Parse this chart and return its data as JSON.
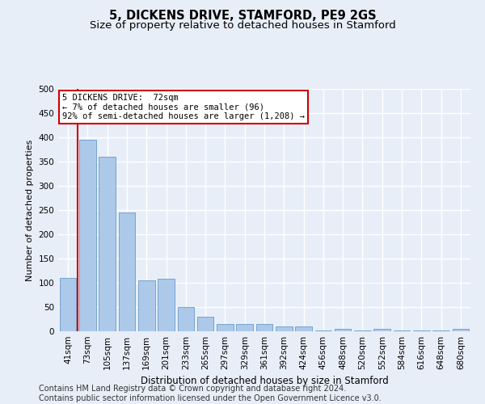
{
  "title": "5, DICKENS DRIVE, STAMFORD, PE9 2GS",
  "subtitle": "Size of property relative to detached houses in Stamford",
  "xlabel": "Distribution of detached houses by size in Stamford",
  "ylabel": "Number of detached properties",
  "categories": [
    "41sqm",
    "73sqm",
    "105sqm",
    "137sqm",
    "169sqm",
    "201sqm",
    "233sqm",
    "265sqm",
    "297sqm",
    "329sqm",
    "361sqm",
    "392sqm",
    "424sqm",
    "456sqm",
    "488sqm",
    "520sqm",
    "552sqm",
    "584sqm",
    "616sqm",
    "648sqm",
    "680sqm"
  ],
  "values": [
    110,
    395,
    360,
    245,
    105,
    108,
    50,
    30,
    15,
    15,
    15,
    10,
    10,
    1,
    5,
    1,
    5,
    1,
    1,
    1,
    5
  ],
  "bar_color": "#adc9e9",
  "bar_edge_color": "#6699cc",
  "annotation_box_text": "5 DICKENS DRIVE:  72sqm\n← 7% of detached houses are smaller (96)\n92% of semi-detached houses are larger (1,208) →",
  "annotation_box_color": "#ffffff",
  "annotation_box_edge_color": "#cc0000",
  "property_line_color": "#cc0000",
  "background_color": "#e8eef8",
  "grid_color": "#ffffff",
  "footer_text": "Contains HM Land Registry data © Crown copyright and database right 2024.\nContains public sector information licensed under the Open Government Licence v3.0.",
  "ylim": [
    0,
    500
  ],
  "yticks": [
    0,
    50,
    100,
    150,
    200,
    250,
    300,
    350,
    400,
    450,
    500
  ],
  "title_fontsize": 10.5,
  "subtitle_fontsize": 9.5,
  "axis_fontsize": 8,
  "tick_fontsize": 7.5,
  "footer_fontsize": 7
}
